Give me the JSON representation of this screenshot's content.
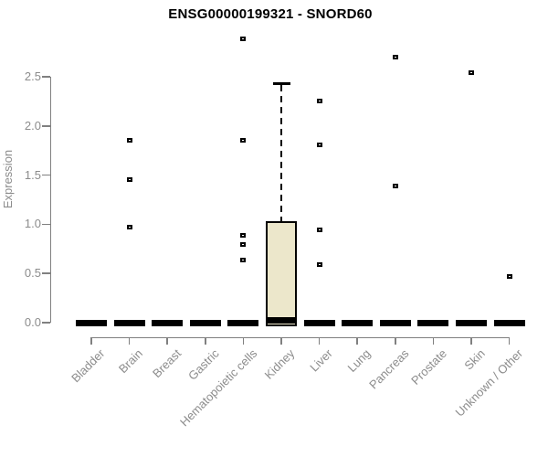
{
  "title": "ENSG00000199321 - SNORD60",
  "chart_data": {
    "type": "boxplot",
    "title": "ENSG00000199321 - SNORD60",
    "xlabel": "",
    "ylabel": "Expression",
    "ylim": [
      0,
      2.5
    ],
    "yticks": [
      "0.0",
      "0.5",
      "1.0",
      "1.5",
      "2.0",
      "2.5"
    ],
    "grid": false,
    "legend": null,
    "categories": [
      "Bladder",
      "Brain",
      "Breast",
      "Gastric",
      "Hematopoietic cells",
      "Kidney",
      "Liver",
      "Lung",
      "Pancreas",
      "Prostate",
      "Skin",
      "Unknown / Other"
    ],
    "groups": [
      {
        "category": "Bladder",
        "median": 0,
        "outliers": []
      },
      {
        "category": "Brain",
        "median": 0,
        "outliers": [
          1.85,
          1.45,
          0.97
        ]
      },
      {
        "category": "Breast",
        "median": 0,
        "outliers": []
      },
      {
        "category": "Gastric",
        "median": 0,
        "outliers": []
      },
      {
        "category": "Hematopoietic cells",
        "median": 0,
        "outliers": [
          2.89,
          1.85,
          0.89,
          0.79,
          0.64
        ]
      },
      {
        "category": "Kidney",
        "median": 0.02,
        "box": {
          "q1": 0,
          "q3": 1.03,
          "whisker_high": 2.43
        },
        "outliers": []
      },
      {
        "category": "Liver",
        "median": 0,
        "outliers": [
          2.25,
          1.81,
          0.94,
          0.59
        ]
      },
      {
        "category": "Lung",
        "median": 0,
        "outliers": []
      },
      {
        "category": "Pancreas",
        "median": 0,
        "outliers": [
          2.7,
          1.39
        ]
      },
      {
        "category": "Prostate",
        "median": 0,
        "outliers": []
      },
      {
        "category": "Skin",
        "median": 0,
        "outliers": [
          2.54
        ]
      },
      {
        "category": "Unknown / Other",
        "median": 0,
        "outliers": [
          0.47
        ]
      }
    ],
    "colors": {
      "box_fill": "#ECE7CB",
      "box_border": "#000000",
      "median": "#000000",
      "point": "#000000",
      "axis": "#808080",
      "tick_label": "#8C8C8C",
      "title": "#000000"
    }
  }
}
